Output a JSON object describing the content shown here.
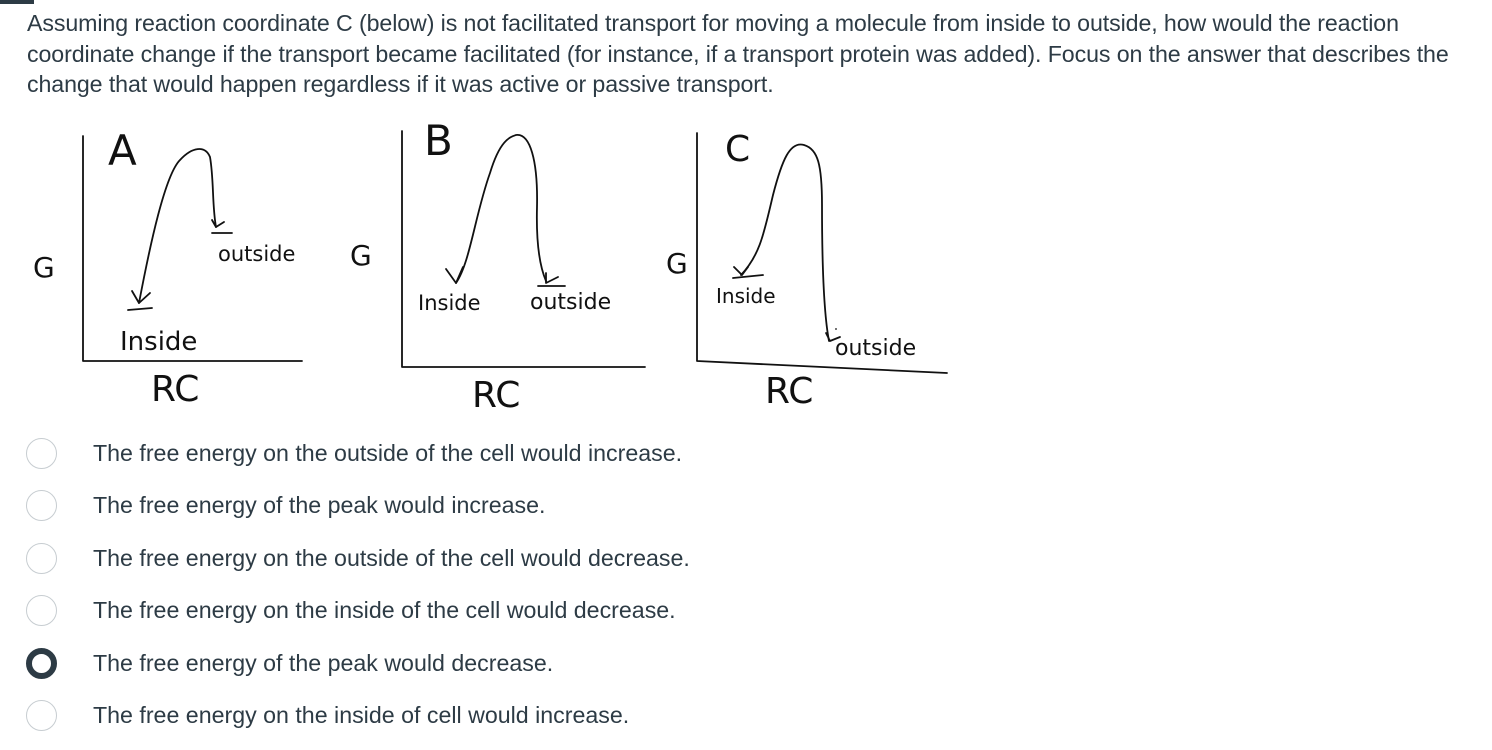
{
  "question": {
    "text": "Assuming reaction coordinate C (below) is not facilitated transport for moving a molecule from inside to outside, how would the reaction coordinate change if the transport became facilitated (for instance, if a transport protein was added).  Focus on the answer that describes the change that would happen regardless if it was active or passive transport."
  },
  "diagram": {
    "panels": [
      {
        "letter": "A",
        "g_label": "G",
        "rc_label": "RC",
        "inside_label": "Inside",
        "outside_label": "outside"
      },
      {
        "letter": "B",
        "g_label": "G",
        "rc_label": "RC",
        "inside_label": "Inside",
        "outside_label": "outside"
      },
      {
        "letter": "C",
        "g_label": "G",
        "rc_label": "RC",
        "inside_label": "Inside",
        "outside_label": "outside"
      }
    ]
  },
  "options": [
    {
      "label": "The free energy on the outside of the cell would increase.",
      "selected": false
    },
    {
      "label": "The free energy of the peak would increase.",
      "selected": false
    },
    {
      "label": "The free energy on the outside of the cell would decrease.",
      "selected": false
    },
    {
      "label": "The free energy on the inside of the cell would decrease.",
      "selected": false
    },
    {
      "label": "The free energy of the peak would decrease.",
      "selected": true
    },
    {
      "label": "The free energy on the inside of cell would increase.",
      "selected": false
    }
  ]
}
